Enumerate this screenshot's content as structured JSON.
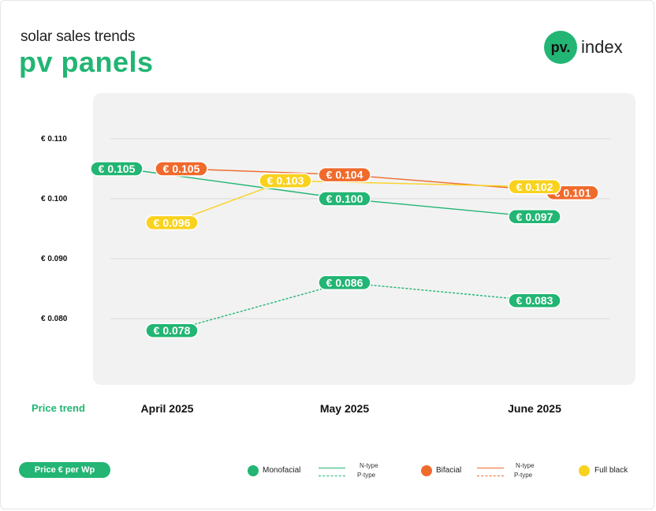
{
  "header": {
    "subtitle": "solar sales trends",
    "title": "pv panels",
    "logo_mark": "pv.",
    "logo_text": "index"
  },
  "colors": {
    "green": "#22b573",
    "orange": "#f06a2c",
    "yellow": "#f9d21e"
  },
  "footer": {
    "price_trend": "Price trend",
    "unit": "Price € per Wp"
  },
  "legend": {
    "monofacial": "Monofacial",
    "bifacial": "Bifacial",
    "full_black": "Full black",
    "n_type": "N-type",
    "p_type": "P-type"
  },
  "chart_data": {
    "type": "line",
    "categories": [
      "April 2025",
      "May 2025",
      "June 2025"
    ],
    "y_ticks": [
      "€ 0.110",
      "€ 0.100",
      "€ 0.090",
      "€ 0.080"
    ],
    "y_tick_values": [
      0.11,
      0.1,
      0.09,
      0.08
    ],
    "ylim": [
      0.076,
      0.11
    ],
    "grid": true,
    "legend_position": "bottom",
    "series": [
      {
        "name": "Monofacial N-type",
        "color": "#22b573",
        "dashed": false,
        "values": [
          0.105,
          0.1,
          0.097
        ],
        "labels": [
          "€ 0.105",
          "€ 0.100",
          "€ 0.097"
        ]
      },
      {
        "name": "Monofacial P-type",
        "color": "#22b573",
        "dashed": true,
        "values": [
          0.078,
          0.086,
          0.083
        ],
        "labels": [
          "€ 0.078",
          "€ 0.086",
          "€ 0.083"
        ]
      },
      {
        "name": "Bifacial N-type",
        "color": "#f06a2c",
        "dashed": false,
        "values": [
          0.105,
          0.104,
          0.101
        ],
        "labels": [
          "€ 0.105",
          "€ 0.104",
          "€ 0.101"
        ]
      },
      {
        "name": "Full black",
        "color": "#f9d21e",
        "dashed": false,
        "values": [
          0.096,
          0.103,
          0.102
        ],
        "labels": [
          "€ 0.096",
          "€ 0.103",
          "€ 0.102"
        ]
      }
    ]
  }
}
